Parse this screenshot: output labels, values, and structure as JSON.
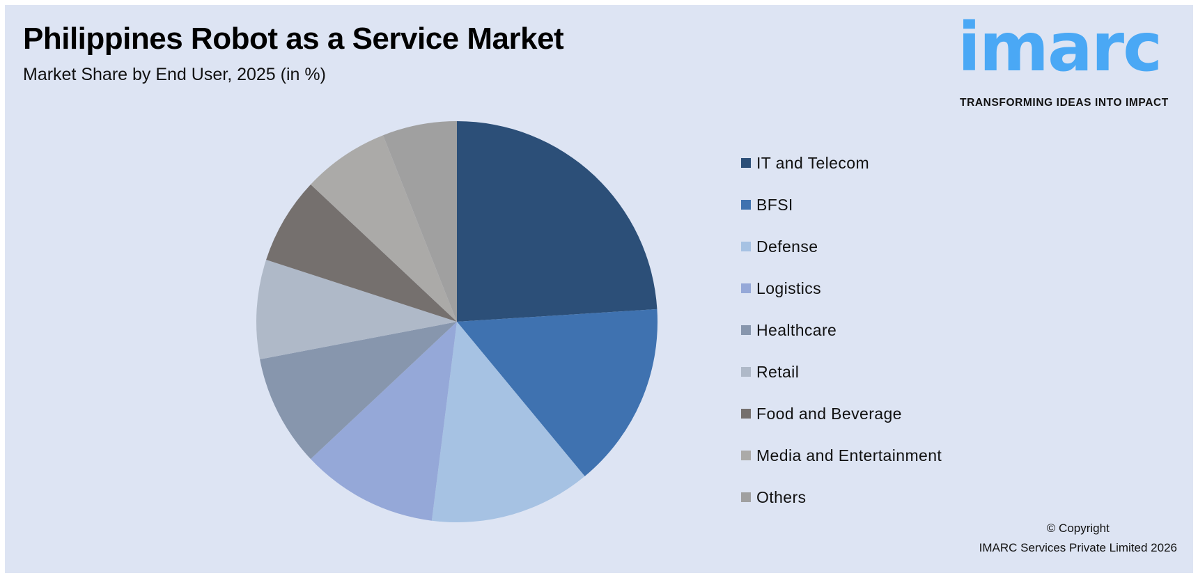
{
  "chart_data": {
    "type": "pie",
    "title": "Philippines Robot as a Service Market",
    "subtitle": "Market Share by End User, 2025 (in %)",
    "legend_position": "right",
    "start_angle": "top, clockwise",
    "slices": [
      {
        "label": "IT and Telecom",
        "value": 24,
        "color": "#2c4f78"
      },
      {
        "label": "BFSI",
        "value": 15,
        "color": "#3f72b0"
      },
      {
        "label": "Defense",
        "value": 13,
        "color": "#a6c2e3"
      },
      {
        "label": "Logistics",
        "value": 11,
        "color": "#95a8d8"
      },
      {
        "label": "Healthcare",
        "value": 9,
        "color": "#8796ad"
      },
      {
        "label": "Retail",
        "value": 8,
        "color": "#afb9c8"
      },
      {
        "label": "Food and Beverage",
        "value": 7,
        "color": "#75706e"
      },
      {
        "label": "Media and Entertainment",
        "value": 7,
        "color": "#abaaa8"
      },
      {
        "label": "Others",
        "value": 6,
        "color": "#a0a0a0"
      }
    ]
  },
  "logo": {
    "word": "imarc",
    "tagline": "TRANSFORMING IDEAS INTO IMPACT",
    "color": "#4aa8f5"
  },
  "footer": {
    "copyright": "© Copyright",
    "company": "IMARC Services Private Limited 2026"
  },
  "colors": {
    "background": "#dde4f3"
  }
}
